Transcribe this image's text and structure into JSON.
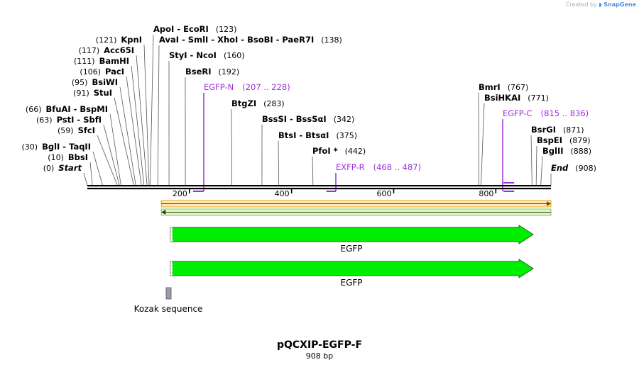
{
  "credit": {
    "prefix": "Created by",
    "brand": "SnapGene"
  },
  "map": {
    "name": "pQCXIP-EGFP-F",
    "length_label": "908 bp",
    "length": 908,
    "ticks": [
      200,
      400,
      600,
      800
    ]
  },
  "sites": [
    {
      "label": "Start",
      "pos": "(0)",
      "bp": 0,
      "italic": true
    },
    {
      "label": "BbsI",
      "pos": "(10)",
      "bp": 10
    },
    {
      "label": "BglI  -  TaqII",
      "pos": "(30)",
      "bp": 30
    },
    {
      "label": "SfcI",
      "pos": "(59)",
      "bp": 59
    },
    {
      "label": "PstI  -  SbfI",
      "pos": "(63)",
      "bp": 63
    },
    {
      "label": "BfuAI  -  BspMI",
      "pos": "(66)",
      "bp": 66
    },
    {
      "label": "StuI",
      "pos": "(91)",
      "bp": 91
    },
    {
      "label": "BsiWI",
      "pos": "(95)",
      "bp": 95
    },
    {
      "label": "PacI",
      "pos": "(106)",
      "bp": 106
    },
    {
      "label": "BamHI",
      "pos": "(111)",
      "bp": 111
    },
    {
      "label": "Acc65I",
      "pos": "(117)",
      "bp": 117
    },
    {
      "label": "KpnI",
      "pos": "(121)",
      "bp": 121
    },
    {
      "label": "ApoI  -  EcoRI",
      "pos": "(123)",
      "bp": 123
    },
    {
      "label": "AvaI  -  SmlI  -  XhoI  -  BsoBI  -  PaeR7I",
      "pos": "(138)",
      "bp": 138
    },
    {
      "label": "StyI  -  NcoI",
      "pos": "(160)",
      "bp": 160
    },
    {
      "label": "BseRI",
      "pos": "(192)",
      "bp": 192
    },
    {
      "label": "BtgZI",
      "pos": "(283)",
      "bp": 283
    },
    {
      "label": "BssSI  -  BssSαI",
      "pos": "(342)",
      "bp": 342
    },
    {
      "label": "BtsI  -  BtsαI",
      "pos": "(375)",
      "bp": 375
    },
    {
      "label": "PfoI *",
      "pos": "(442)",
      "bp": 442
    },
    {
      "label": "BmrI",
      "pos": "(767)",
      "bp": 767
    },
    {
      "label": "BsiHKAI",
      "pos": "(771)",
      "bp": 771
    },
    {
      "label": "BsrGI",
      "pos": "(871)",
      "bp": 871
    },
    {
      "label": "BspEI",
      "pos": "(879)",
      "bp": 879
    },
    {
      "label": "BglII",
      "pos": "(888)",
      "bp": 888
    },
    {
      "label": "End",
      "pos": "(908)",
      "bp": 908,
      "italic": true
    }
  ],
  "primers": [
    {
      "label": "EGFP-N",
      "range": "(207 .. 228)",
      "start": 207,
      "end": 228
    },
    {
      "label": "EXFP-R",
      "range": "(468 .. 487)",
      "start": 468,
      "end": 487
    },
    {
      "label": "EGFP-C",
      "range": "(815 .. 836)",
      "start": 815,
      "end": 836
    }
  ],
  "features": [
    {
      "label": "EGFP",
      "start": 160,
      "end": 880,
      "color": "#00ee00"
    },
    {
      "label": "EGFP",
      "start": 160,
      "end": 880,
      "color": "#00ee00"
    },
    {
      "label": "Kozak sequence",
      "start": 153,
      "end": 163,
      "color": "#9a9ea8"
    }
  ],
  "colors": {
    "primer": "#9b30d9",
    "feature": "#00ee00",
    "orf_top": "#f0a020",
    "orf_bottom": "#80d040"
  }
}
